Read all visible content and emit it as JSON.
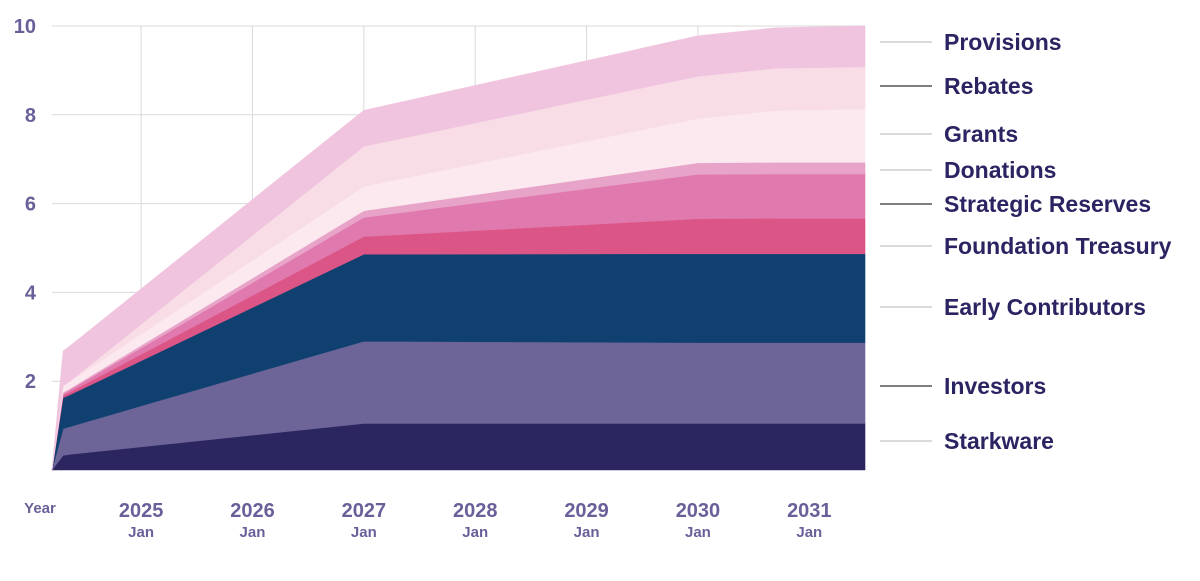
{
  "chart_data": {
    "type": "area",
    "stacked": true,
    "title": "",
    "xlabel": "Year",
    "ylabel": "",
    "ylim": [
      0,
      10
    ],
    "yticks": [
      2,
      4,
      6,
      8,
      10
    ],
    "xlim": [
      2024.2,
      2031.5
    ],
    "xticks": [
      {
        "value": 2025.0,
        "year": "2025",
        "month": "Jan"
      },
      {
        "value": 2026.0,
        "year": "2026",
        "month": "Jan"
      },
      {
        "value": 2027.0,
        "year": "2027",
        "month": "Jan"
      },
      {
        "value": 2028.0,
        "year": "2028",
        "month": "Jan"
      },
      {
        "value": 2029.0,
        "year": "2029",
        "month": "Jan"
      },
      {
        "value": 2030.0,
        "year": "2030",
        "month": "Jan"
      },
      {
        "value": 2031.0,
        "year": "2031",
        "month": "Jan"
      }
    ],
    "x": [
      2024.2,
      2024.3,
      2024.35,
      2027.0,
      2030.0,
      2030.7,
      2031.5
    ],
    "series": [
      {
        "name": "Starkware",
        "color": "#2c2660",
        "values": [
          0.0,
          0.33,
          0.35,
          1.05,
          1.05,
          1.05,
          1.05
        ]
      },
      {
        "name": "Investors",
        "color": "#6d6598",
        "values": [
          0.0,
          0.6,
          0.62,
          1.85,
          1.82,
          1.82,
          1.82
        ]
      },
      {
        "name": "Early Contributors",
        "color": "#0f4070",
        "values": [
          0.0,
          0.7,
          0.71,
          1.96,
          2.0,
          2.0,
          2.0
        ]
      },
      {
        "name": "Foundation Treasury",
        "color": "#dc5587",
        "values": [
          0.0,
          0.05,
          0.06,
          0.4,
          0.79,
          0.8,
          0.8
        ]
      },
      {
        "name": "Strategic Reserves",
        "color": "#e07aae",
        "values": [
          0.0,
          0.04,
          0.05,
          0.43,
          1.0,
          1.0,
          1.0
        ]
      },
      {
        "name": "Donations",
        "color": "#e8a3c8",
        "values": [
          0.0,
          0.03,
          0.03,
          0.15,
          0.26,
          0.26,
          0.26
        ]
      },
      {
        "name": "Grants",
        "color": "#fbe9ef",
        "values": [
          0.0,
          0.15,
          0.16,
          0.55,
          1.0,
          1.17,
          1.2
        ]
      },
      {
        "name": "Rebates",
        "color": "#f8dce6",
        "values": [
          0.0,
          0.0,
          0.0,
          0.9,
          0.95,
          0.95,
          0.95
        ]
      },
      {
        "name": "Provisions",
        "color": "#f0c4de",
        "values": [
          0.0,
          0.78,
          0.79,
          0.81,
          0.91,
          0.91,
          0.92
        ]
      }
    ],
    "legend": [
      {
        "name": "Provisions",
        "line_color": "#cfcfcf"
      },
      {
        "name": "Rebates",
        "line_color": "#555555"
      },
      {
        "name": "Grants",
        "line_color": "#cfcfcf"
      },
      {
        "name": "Donations",
        "line_color": "#cfcfcf"
      },
      {
        "name": "Strategic Reserves",
        "line_color": "#555555"
      },
      {
        "name": "Foundation Treasury",
        "line_color": "#cfcfcf"
      },
      {
        "name": "Early Contributors",
        "line_color": "#cfcfcf"
      },
      {
        "name": "Investors",
        "line_color": "#555555"
      },
      {
        "name": "Starkware",
        "line_color": "#cfcfcf"
      }
    ],
    "legend_placement": "right",
    "grid": true
  }
}
